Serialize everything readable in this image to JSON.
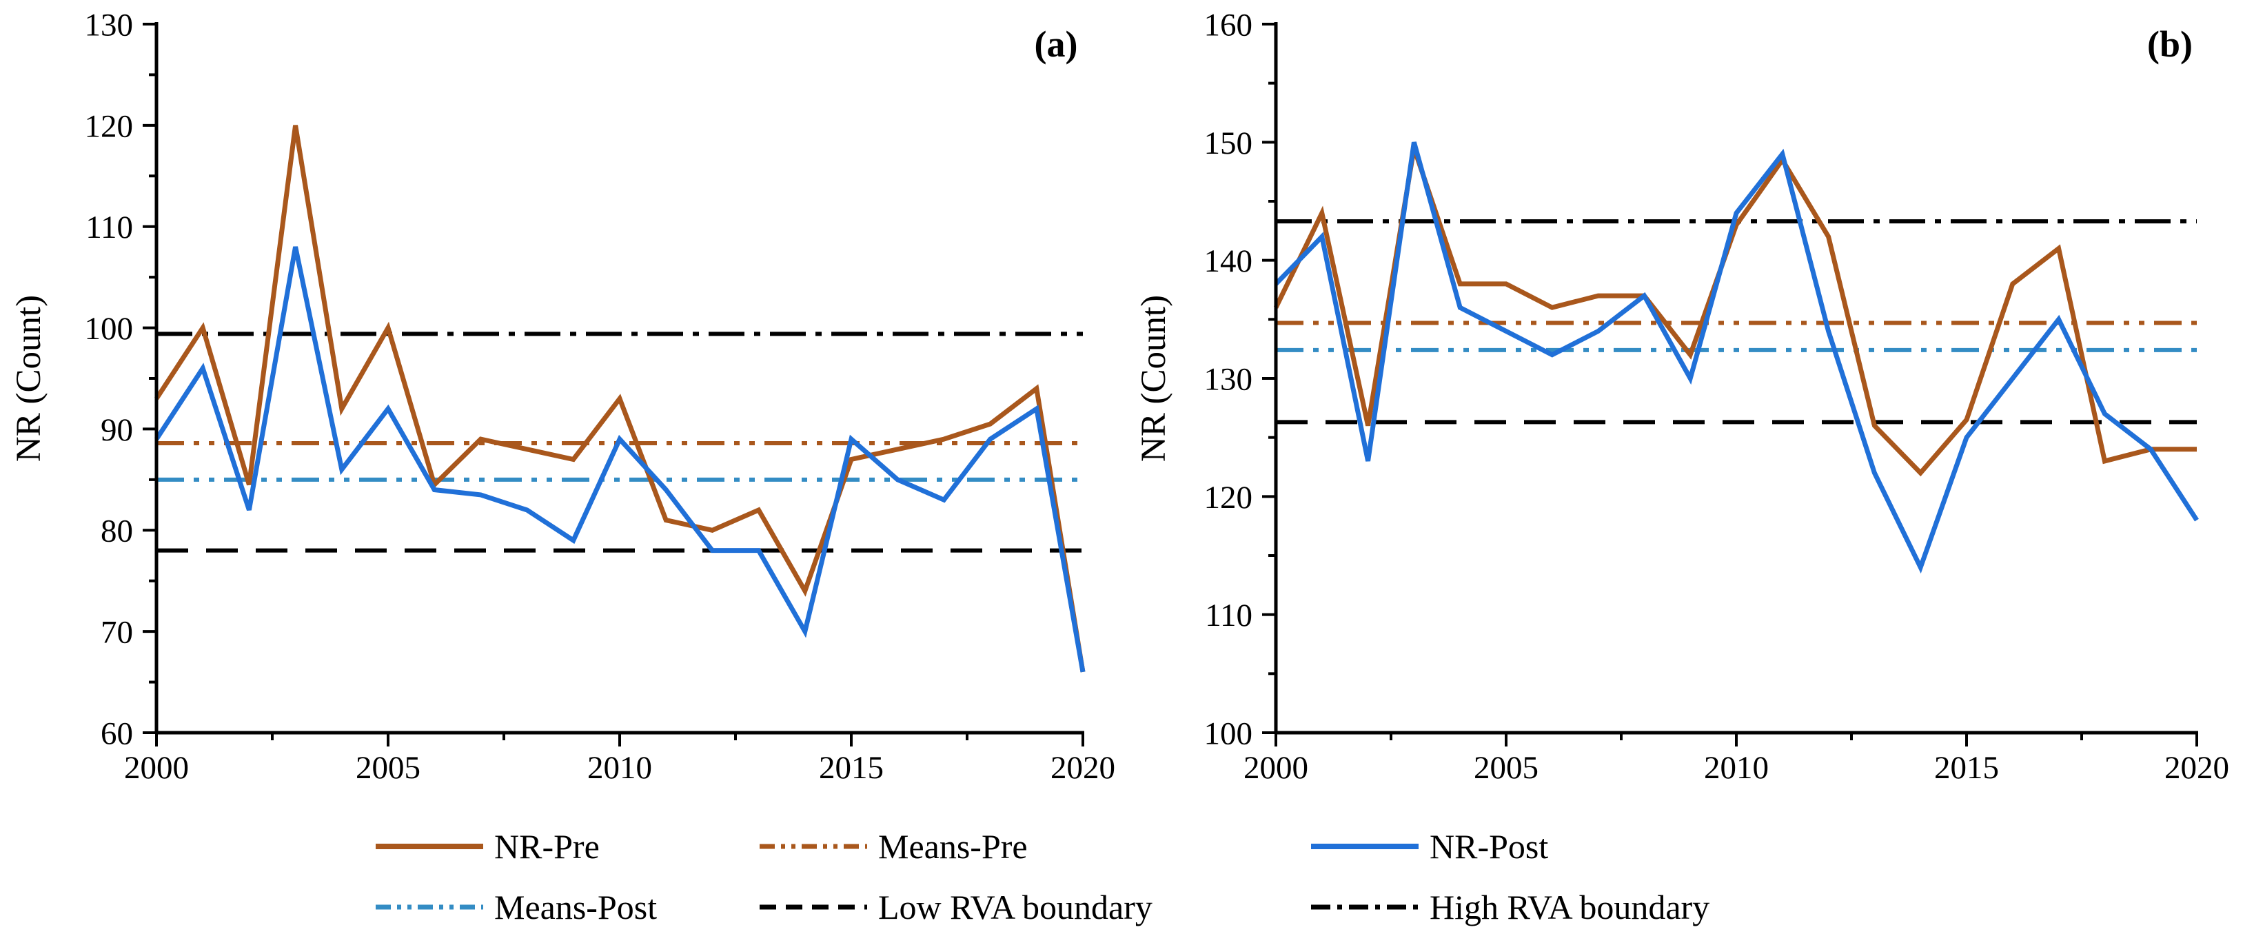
{
  "figure": {
    "background": "#ffffff",
    "axis_color": "#000000",
    "panels": [
      "(a)",
      "(b)"
    ]
  },
  "chart_data": [
    {
      "id": "a",
      "type": "line",
      "panel_label": "(a)",
      "ylabel": "NR (Count)",
      "xlabel": "",
      "x": [
        2000,
        2001,
        2002,
        2003,
        2004,
        2005,
        2006,
        2007,
        2008,
        2009,
        2010,
        2011,
        2012,
        2013,
        2014,
        2015,
        2016,
        2017,
        2018,
        2019,
        2020
      ],
      "xlim": [
        2000,
        2020
      ],
      "ylim": [
        60,
        130
      ],
      "x_major_ticks": [
        2000,
        2005,
        2010,
        2015,
        2020
      ],
      "y_major_ticks": [
        60,
        70,
        80,
        90,
        100,
        110,
        120,
        130
      ],
      "grid": false,
      "series": [
        {
          "name": "NR-Pre",
          "color": "#A9571C",
          "style": "solid",
          "values": [
            93,
            100,
            84.5,
            120,
            92,
            100,
            84.5,
            89,
            88,
            87,
            93,
            81,
            80,
            82,
            74,
            87,
            88,
            89,
            90.5,
            94,
            66
          ]
        },
        {
          "name": "NR-Post",
          "color": "#2070D8",
          "style": "solid",
          "values": [
            89,
            96,
            82,
            108,
            86,
            92,
            84,
            83.5,
            82,
            79,
            89,
            84,
            78,
            78,
            70,
            89,
            85,
            83,
            89,
            92,
            66
          ]
        }
      ],
      "reference_lines": [
        {
          "name": "Means-Pre",
          "value": 88.6,
          "color": "#A9571C",
          "style": "dashdotdot"
        },
        {
          "name": "Means-Post",
          "value": 85.0,
          "color": "#338CC4",
          "style": "dashdotdot"
        },
        {
          "name": "Low RVA boundary",
          "value": 78.0,
          "color": "#000000",
          "style": "dashed"
        },
        {
          "name": "High RVA boundary",
          "value": 99.4,
          "color": "#000000",
          "style": "dashdot"
        }
      ]
    },
    {
      "id": "b",
      "type": "line",
      "panel_label": "(b)",
      "ylabel": "NR (Count)",
      "xlabel": "",
      "x": [
        2000,
        2001,
        2002,
        2003,
        2004,
        2005,
        2006,
        2007,
        2008,
        2009,
        2010,
        2011,
        2012,
        2013,
        2014,
        2015,
        2016,
        2017,
        2018,
        2019,
        2020
      ],
      "xlim": [
        2000,
        2020
      ],
      "ylim": [
        100,
        160
      ],
      "x_major_ticks": [
        2000,
        2005,
        2010,
        2015,
        2020
      ],
      "y_major_ticks": [
        100,
        110,
        120,
        130,
        140,
        150,
        160
      ],
      "grid": false,
      "series": [
        {
          "name": "NR-Pre",
          "color": "#A9571C",
          "style": "solid",
          "values": [
            136,
            144,
            126,
            149.5,
            138,
            138,
            136,
            137,
            137,
            132,
            143,
            148.5,
            142,
            126,
            122,
            126.5,
            138,
            141,
            123,
            124,
            124
          ]
        },
        {
          "name": "NR-Post",
          "color": "#2070D8",
          "style": "solid",
          "values": [
            138,
            142,
            123,
            150,
            136,
            134,
            132,
            134,
            137,
            130,
            144,
            149,
            134,
            122,
            114,
            125,
            130,
            135,
            127,
            124,
            118
          ]
        }
      ],
      "reference_lines": [
        {
          "name": "Means-Pre",
          "value": 134.7,
          "color": "#A9571C",
          "style": "dashdotdot"
        },
        {
          "name": "Means-Post",
          "value": 132.4,
          "color": "#338CC4",
          "style": "dashdotdot"
        },
        {
          "name": "Low RVA boundary",
          "value": 126.3,
          "color": "#000000",
          "style": "dashed"
        },
        {
          "name": "High RVA boundary",
          "value": 143.3,
          "color": "#000000",
          "style": "dashdot"
        }
      ]
    }
  ],
  "legend": {
    "items": [
      {
        "label": "NR-Pre",
        "color": "#A9571C",
        "style": "solid"
      },
      {
        "label": "Means-Pre",
        "color": "#A9571C",
        "style": "dashdotdot"
      },
      {
        "label": "NR-Post",
        "color": "#2070D8",
        "style": "solid"
      },
      {
        "label": "Means-Post",
        "color": "#338CC4",
        "style": "dashdotdot"
      },
      {
        "label": "Low RVA boundary",
        "color": "#000000",
        "style": "dashed"
      },
      {
        "label": "High RVA boundary",
        "color": "#000000",
        "style": "dashdot"
      }
    ]
  }
}
